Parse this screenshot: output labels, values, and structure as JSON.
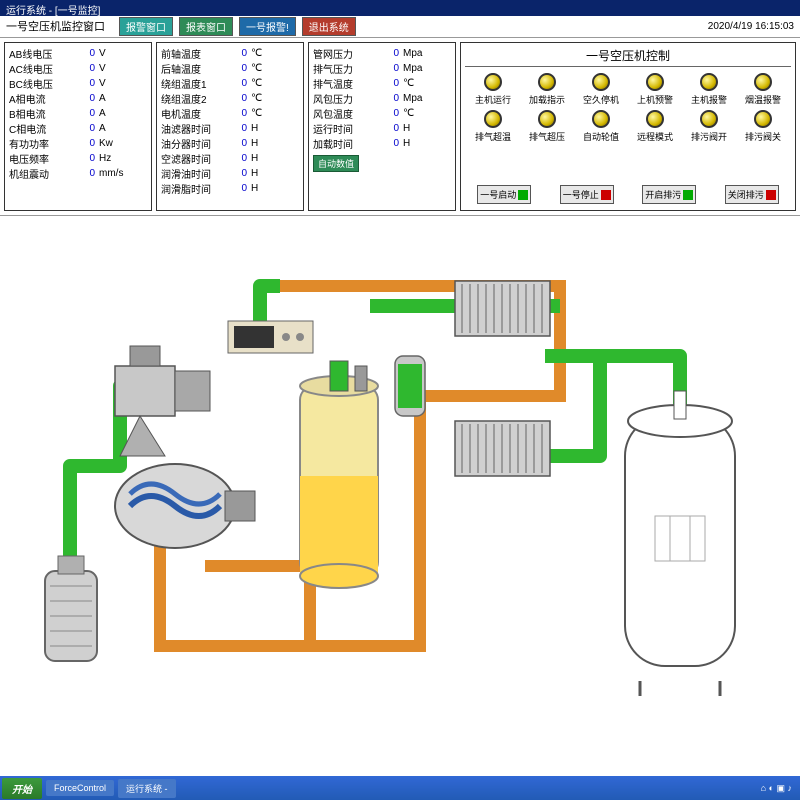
{
  "window": {
    "titlebar": "运行系统 - [一号监控]",
    "header_title": "一号空压机监控窗口",
    "timestamp": "2020/4/19 16:15:03"
  },
  "nav": {
    "alarm": "报警窗口",
    "report": "报表窗口",
    "warning": "一号报警!",
    "exit": "退出系统"
  },
  "panel1": [
    {
      "lbl": "AB线电压",
      "val": "0",
      "unit": "V"
    },
    {
      "lbl": "AC线电压",
      "val": "0",
      "unit": "V"
    },
    {
      "lbl": "BC线电压",
      "val": "0",
      "unit": "V"
    },
    {
      "lbl": "A相电流",
      "val": "0",
      "unit": "A"
    },
    {
      "lbl": "B相电流",
      "val": "0",
      "unit": "A"
    },
    {
      "lbl": "C相电流",
      "val": "0",
      "unit": "A"
    },
    {
      "lbl": "有功功率",
      "val": "0",
      "unit": "Kw"
    },
    {
      "lbl": "电压频率",
      "val": "0",
      "unit": "Hz"
    },
    {
      "lbl": "机组震动",
      "val": "0",
      "unit": "mm/s"
    }
  ],
  "panel2": [
    {
      "lbl": "前轴温度",
      "val": "0",
      "unit": "℃"
    },
    {
      "lbl": "后轴温度",
      "val": "0",
      "unit": "℃"
    },
    {
      "lbl": "绕组温度1",
      "val": "0",
      "unit": "℃"
    },
    {
      "lbl": "绕组温度2",
      "val": "0",
      "unit": "℃"
    },
    {
      "lbl": "电机温度",
      "val": "0",
      "unit": "℃"
    },
    {
      "lbl": "油滤器时间",
      "val": "0",
      "unit": "H"
    },
    {
      "lbl": "油分器时间",
      "val": "0",
      "unit": "H"
    },
    {
      "lbl": "空滤器时间",
      "val": "0",
      "unit": "H"
    },
    {
      "lbl": "润滑油时间",
      "val": "0",
      "unit": "H"
    },
    {
      "lbl": "润滑脂时间",
      "val": "0",
      "unit": "H"
    }
  ],
  "panel3": [
    {
      "lbl": "管网压力",
      "val": "0",
      "unit": "Mpa"
    },
    {
      "lbl": "排气压力",
      "val": "0",
      "unit": "Mpa"
    },
    {
      "lbl": "排气温度",
      "val": "0",
      "unit": "℃"
    },
    {
      "lbl": "风包压力",
      "val": "0",
      "unit": "Mpa"
    },
    {
      "lbl": "风包温度",
      "val": "0",
      "unit": "℃"
    },
    {
      "lbl": "运行时间",
      "val": "0",
      "unit": "H"
    },
    {
      "lbl": "加载时间",
      "val": "0",
      "unit": "H"
    }
  ],
  "auto_label": "自动数值",
  "control": {
    "title": "一号空压机控制",
    "leds_row1": [
      "主机运行",
      "加载指示",
      "空久停机",
      "上机预警",
      "主机报警",
      "烟温报警"
    ],
    "leds_row2": [
      "排气超温",
      "排气超压",
      "自动轮值",
      "远程模式",
      "排污阀开",
      "排污阀关"
    ],
    "buttons": [
      {
        "lbl": "一号启动",
        "color": "green"
      },
      {
        "lbl": "一号停止",
        "color": "red"
      },
      {
        "lbl": "开启排污",
        "color": "green"
      },
      {
        "lbl": "关闭排污",
        "color": "red"
      }
    ]
  },
  "diagram": {
    "bg": "#ffffff",
    "pipe_green": "#2fb82f",
    "pipe_orange": "#e08a2a",
    "pipe_border": "#888888",
    "tank_fill": "#ffd54a",
    "tank_top": "#f5e8a0",
    "metal": "#b8b8b8",
    "dark": "#555555",
    "radiator": "#c8c8c8",
    "radiator_fin": "#888888"
  },
  "taskbar": {
    "start": "开始",
    "items": [
      "ForceControl",
      "运行系统 -"
    ],
    "tray": "⌂ ◐ ▣ ♪"
  }
}
